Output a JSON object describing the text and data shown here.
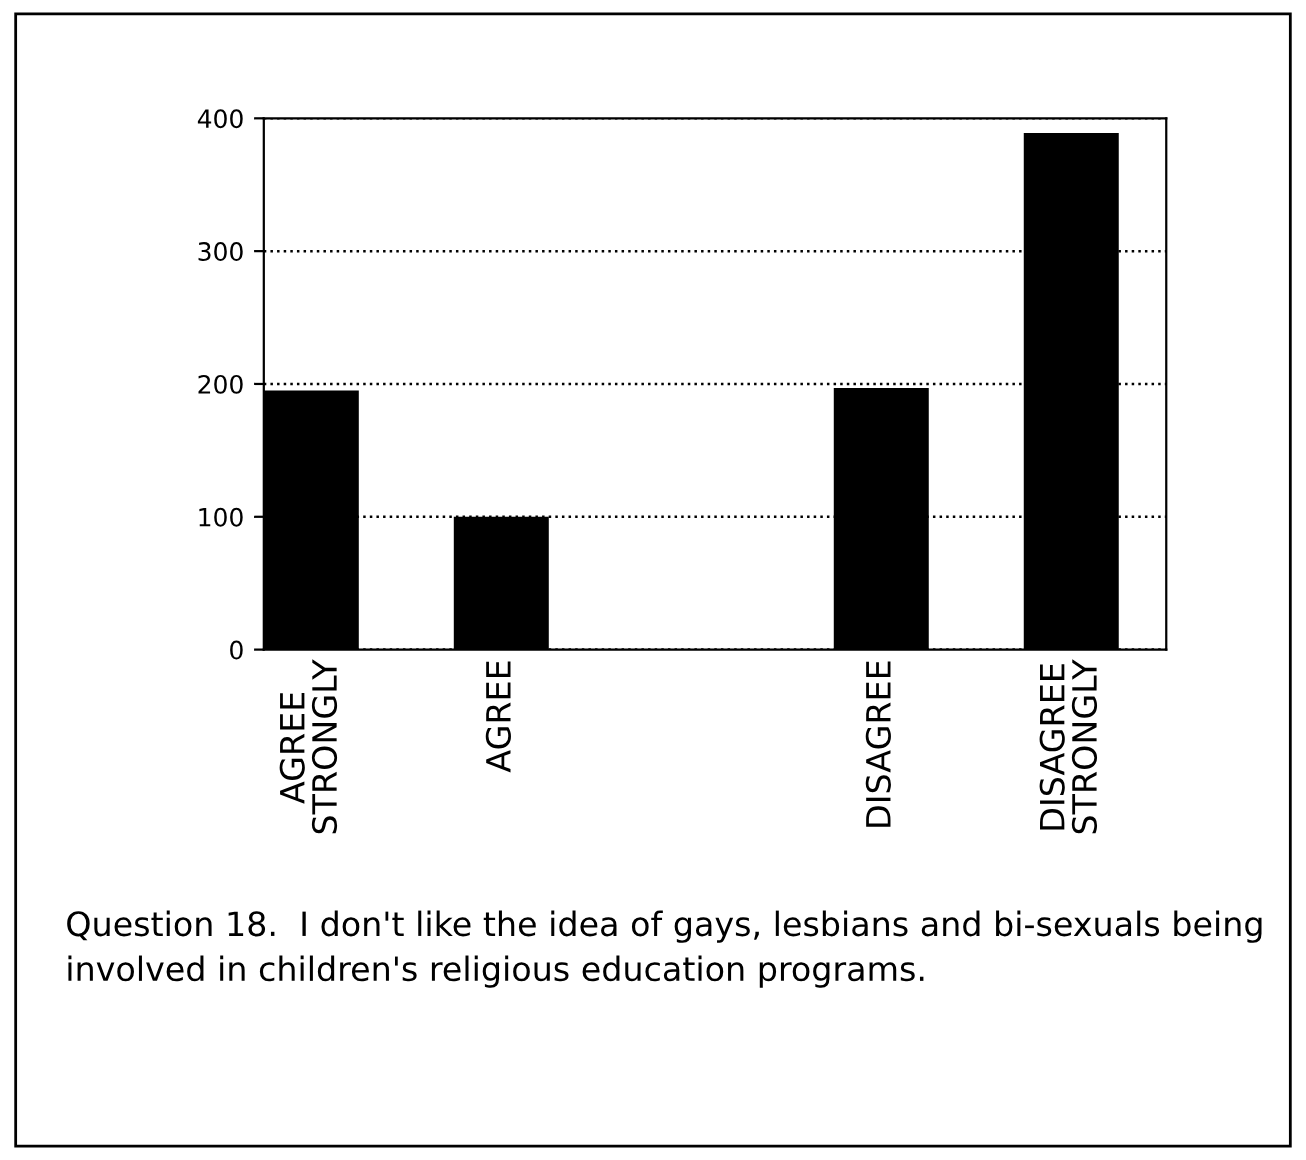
{
  "chart_data": {
    "type": "bar",
    "categories": [
      "AGREE\nSTRONGLY",
      "AGREE",
      null,
      "DISAGREE",
      "DISAGREE\nSTRONGLY"
    ],
    "values": [
      195,
      100,
      null,
      197,
      389
    ],
    "color": "#000000",
    "ylim": [
      0,
      400
    ],
    "yticks": [
      0,
      100,
      200,
      300,
      400
    ],
    "grid": "y",
    "annotations": [
      "Question 18.  I don't like the idea of gays, lesbians and bi-sexuals being involved in children's religious education programs."
    ]
  }
}
